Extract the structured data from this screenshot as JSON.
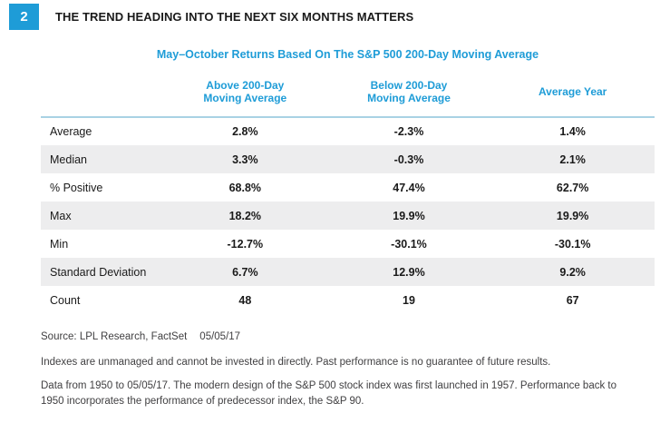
{
  "figure_number": "2",
  "title": "THE TREND HEADING INTO THE NEXT SIX MONTHS MATTERS",
  "colors": {
    "accent_blue": "#1E9CD7",
    "header_rule_blue": "#A9D2E4",
    "row_stripe_gray": "#EDEDEE",
    "footer_text": "#414042"
  },
  "chart_data": {
    "type": "table",
    "title": "May–October Returns Based On The S&P 500 200-Day Moving Average",
    "columns": [
      {
        "line1": "Above 200-Day",
        "line2": "Moving Average"
      },
      {
        "line1": "Below 200-Day",
        "line2": "Moving Average"
      },
      {
        "line1": "Average Year",
        "line2": ""
      }
    ],
    "rows": [
      [
        "Average",
        "2.8%",
        "-2.3%",
        "1.4%"
      ],
      [
        "Median",
        "3.3%",
        "-0.3%",
        "2.1%"
      ],
      [
        "% Positive",
        "68.8%",
        "47.4%",
        "62.7%"
      ],
      [
        "Max",
        "18.2%",
        "19.9%",
        "19.9%"
      ],
      [
        "Min",
        "-12.7%",
        "-30.1%",
        "-30.1%"
      ],
      [
        "Standard Deviation",
        "6.7%",
        "12.9%",
        "9.2%"
      ],
      [
        "Count",
        "48",
        "19",
        "67"
      ]
    ],
    "layout": {
      "stripe_rows": "even",
      "value_alignment": "center",
      "label_alignment": "left"
    }
  },
  "footer": {
    "source": "Source: LPL Research, FactSet",
    "date": "05/05/17",
    "disclaimer1": "Indexes are unmanaged and cannot be invested in directly. Past performance is no guarantee of future results.",
    "disclaimer2": "Data from 1950 to 05/05/17. The modern design of the S&P 500 stock index was first launched in 1957. Performance back to 1950 incorporates the performance of predecessor index, the S&P 90."
  }
}
